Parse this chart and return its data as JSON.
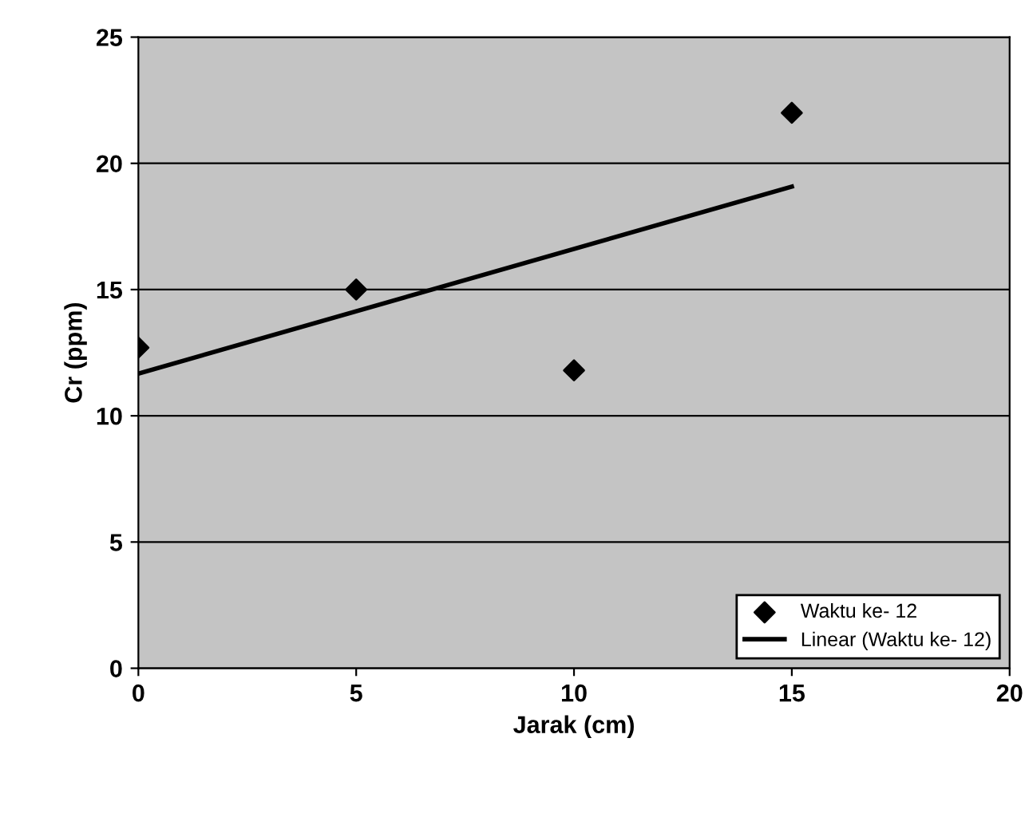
{
  "chart_data": {
    "type": "scatter",
    "xlabel": "Jarak (cm)",
    "ylabel": "Cr (ppm)",
    "xlim": [
      0,
      20
    ],
    "xticks": [
      0,
      5,
      10,
      15,
      20
    ],
    "ylim": [
      0,
      25
    ],
    "yticks": [
      0,
      5,
      10,
      15,
      20,
      25
    ],
    "grid": "y",
    "legend": "bottom right",
    "series": [
      {
        "name": "Waktu ke- 12",
        "color": "#000000",
        "marker": "diamond",
        "x": [
          0,
          5,
          10,
          15
        ],
        "values": [
          12.7,
          15,
          11.8,
          22
        ]
      },
      {
        "name": "Linear (Waktu ke- 12)",
        "type": "line",
        "color": "#000000",
        "marker": "none",
        "line_style": "solid",
        "x": [
          0,
          15
        ],
        "values": [
          11.67,
          19.08
        ]
      }
    ]
  }
}
